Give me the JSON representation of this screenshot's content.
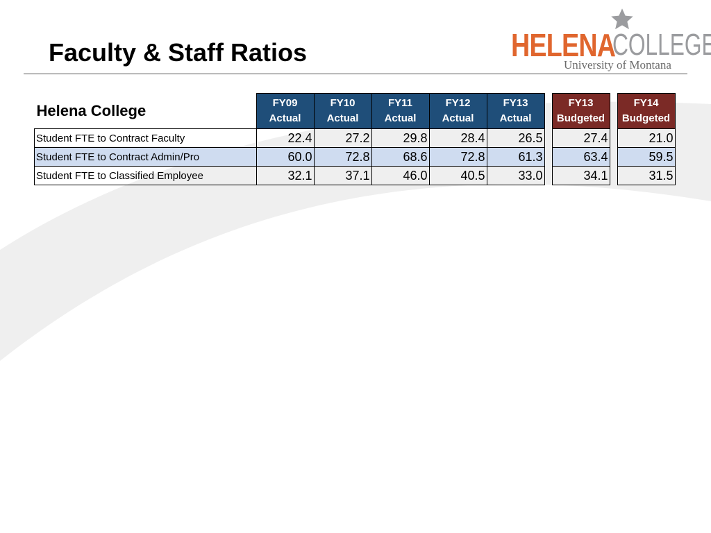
{
  "slide": {
    "title": "Faculty & Staff Ratios"
  },
  "logo": {
    "name_bold": "HELENA",
    "name_light": "COLLEGE",
    "subtitle": "University of Montana"
  },
  "colors": {
    "actual_header": "#1f4e79",
    "budget_header": "#7b2a26",
    "alt_row": "#cfdcf0",
    "logo_orange": "#e0662e",
    "logo_gray": "#9b9c9f"
  },
  "table": {
    "org_name": "Helena College",
    "columns": [
      {
        "year": "FY09",
        "kind": "Actual"
      },
      {
        "year": "FY10",
        "kind": "Actual"
      },
      {
        "year": "FY11",
        "kind": "Actual"
      },
      {
        "year": "FY12",
        "kind": "Actual"
      },
      {
        "year": "FY13",
        "kind": "Actual"
      },
      {
        "year": "FY13",
        "kind": "Budgeted"
      },
      {
        "year": "FY14",
        "kind": "Budgeted"
      }
    ],
    "rows": [
      {
        "label": "Student FTE to Contract Faculty",
        "values": [
          "22.4",
          "27.2",
          "29.8",
          "28.4",
          "26.5",
          "27.4",
          "21.0"
        ]
      },
      {
        "label": "Student FTE to Contract Admin/Pro",
        "values": [
          "60.0",
          "72.8",
          "68.6",
          "72.8",
          "61.3",
          "63.4",
          "59.5"
        ]
      },
      {
        "label": "Student FTE to Classified Employee",
        "values": [
          "32.1",
          "37.1",
          "46.0",
          "40.5",
          "33.0",
          "34.1",
          "31.5"
        ]
      }
    ]
  }
}
